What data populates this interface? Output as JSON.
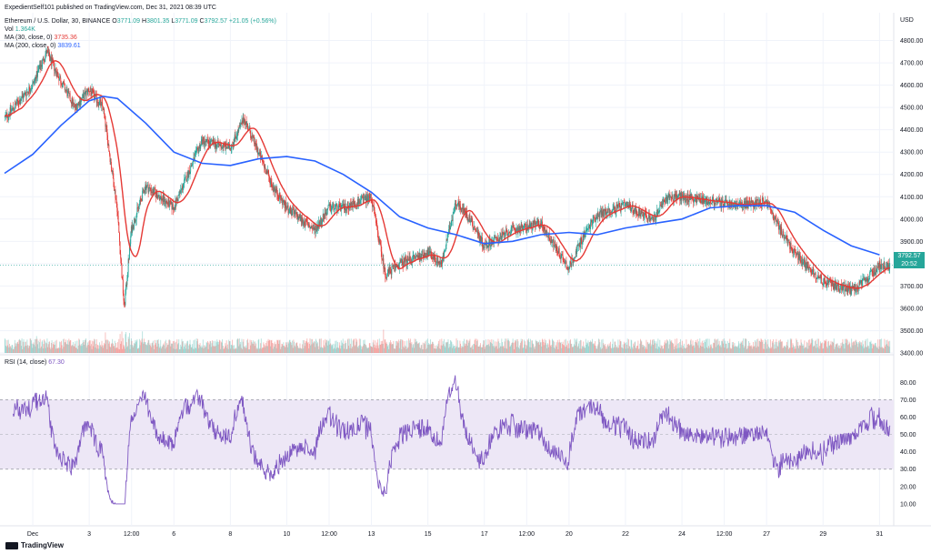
{
  "title_line": "ExpedientSelf101 published on TradingView.com, Dec 31, 2021 08:39 UTC",
  "legend": {
    "symbol": "Ethereum / U.S. Dollar, 30, BINANCE",
    "o_label": "O",
    "o": "3771.09",
    "h_label": "H",
    "h": "3801.35",
    "l_label": "L",
    "l": "3771.09",
    "c_label": "C",
    "c": "3792.57",
    "change": "+21.05 (+0.56%)",
    "vol_label": "Vol",
    "vol": "1.364K",
    "ma30_label": "MA (30, close, 0)",
    "ma30": "3735.36",
    "ma200_label": "MA (200, close, 0)",
    "ma200": "3839.61",
    "rsi_label": "RSI (14, close)",
    "rsi": "67.30"
  },
  "currency": "USD",
  "price_tag": {
    "price": "3792.57",
    "countdown": "20:52"
  },
  "footer_logo": "TradingView",
  "colors": {
    "up": "#26a69a",
    "down": "#e53935",
    "ma30": "#e53935",
    "ma200": "#2962ff",
    "rsi": "#7e57c2",
    "rsi_band": "#ede7f6"
  },
  "chart_data": [
    {
      "type": "candlestick",
      "ylim": [
        3400,
        4900
      ],
      "y_ticks": [
        "4800.00",
        "4700.00",
        "4600.00",
        "4500.00",
        "4400.00",
        "4300.00",
        "4200.00",
        "4100.00",
        "4000.00",
        "3900.00",
        "3800.00",
        "3700.00",
        "3600.00",
        "3500.00",
        "3400.00"
      ],
      "x_ticks": [
        "Dec",
        "3",
        "12:00",
        "6",
        "8",
        "10",
        "12:00",
        "13",
        "15",
        "17",
        "12:00",
        "20",
        "22",
        "24",
        "12:00",
        "27",
        "29",
        "31"
      ],
      "close_path": [
        [
          "Nov 30",
          4450
        ],
        [
          "Dec 1",
          4600
        ],
        [
          "Dec 1 12:00",
          4750
        ],
        [
          "Dec 2",
          4620
        ],
        [
          "Dec 2 12:00",
          4500
        ],
        [
          "Dec 3",
          4580
        ],
        [
          "Dec 3 12:00",
          4500
        ],
        [
          "Dec 4",
          4050
        ],
        [
          "Dec 4 06:00",
          3600
        ],
        [
          "Dec 4 12:00",
          3950
        ],
        [
          "Dec 5",
          4150
        ],
        [
          "Dec 6",
          4050
        ],
        [
          "Dec 6 12:00",
          4200
        ],
        [
          "Dec 7",
          4350
        ],
        [
          "Dec 8",
          4320
        ],
        [
          "Dec 8 12:00",
          4450
        ],
        [
          "Dec 9",
          4300
        ],
        [
          "Dec 9 12:00",
          4150
        ],
        [
          "Dec 10",
          4050
        ],
        [
          "Dec 11",
          3950
        ],
        [
          "Dec 11 12:00",
          4050
        ],
        [
          "Dec 12",
          4050
        ],
        [
          "Dec 13",
          4100
        ],
        [
          "Dec 13 12:00",
          3750
        ],
        [
          "Dec 14",
          3800
        ],
        [
          "Dec 15",
          3850
        ],
        [
          "Dec 15 12:00",
          3800
        ],
        [
          "Dec 16",
          4080
        ],
        [
          "Dec 16 12:00",
          4000
        ],
        [
          "Dec 17",
          3880
        ],
        [
          "Dec 18",
          3950
        ],
        [
          "Dec 19",
          3980
        ],
        [
          "Dec 20",
          3780
        ],
        [
          "Dec 20 12:00",
          3920
        ],
        [
          "Dec 21",
          4020
        ],
        [
          "Dec 22",
          4060
        ],
        [
          "Dec 23",
          4000
        ],
        [
          "Dec 23 12:00",
          4100
        ],
        [
          "Dec 24",
          4100
        ],
        [
          "Dec 25",
          4080
        ],
        [
          "Dec 26",
          4060
        ],
        [
          "Dec 27",
          4080
        ],
        [
          "Dec 27 12:00",
          3950
        ],
        [
          "Dec 28",
          3850
        ],
        [
          "Dec 29",
          3720
        ],
        [
          "Dec 30",
          3680
        ],
        [
          "Dec 30 12:00",
          3720
        ],
        [
          "Dec 31",
          3792.57
        ]
      ],
      "ma30": {
        "name": "MA (30, close, 0)",
        "last": 3735.36
      },
      "ma200": {
        "name": "MA (200, close, 0)",
        "last": 3839.61,
        "path": [
          [
            "Nov 30",
            4205
          ],
          [
            "Dec 1",
            4290
          ],
          [
            "Dec 2",
            4420
          ],
          [
            "Dec 3",
            4530
          ],
          [
            "Dec 3 12:00",
            4550
          ],
          [
            "Dec 4",
            4540
          ],
          [
            "Dec 5",
            4430
          ],
          [
            "Dec 6",
            4300
          ],
          [
            "Dec 7",
            4250
          ],
          [
            "Dec 8",
            4240
          ],
          [
            "Dec 9",
            4270
          ],
          [
            "Dec 10",
            4280
          ],
          [
            "Dec 11",
            4260
          ],
          [
            "Dec 12",
            4200
          ],
          [
            "Dec 13",
            4120
          ],
          [
            "Dec 14",
            4010
          ],
          [
            "Dec 15",
            3960
          ],
          [
            "Dec 16",
            3930
          ],
          [
            "Dec 17",
            3890
          ],
          [
            "Dec 18",
            3900
          ],
          [
            "Dec 19",
            3930
          ],
          [
            "Dec 20",
            3940
          ],
          [
            "Dec 21",
            3930
          ],
          [
            "Dec 22",
            3960
          ],
          [
            "Dec 23",
            3980
          ],
          [
            "Dec 24",
            4000
          ],
          [
            "Dec 25",
            4050
          ],
          [
            "Dec 26",
            4060
          ],
          [
            "Dec 27",
            4060
          ],
          [
            "Dec 28",
            4030
          ],
          [
            "Dec 29",
            3950
          ],
          [
            "Dec 30",
            3880
          ],
          [
            "Dec 31",
            3840
          ]
        ]
      },
      "volume": {
        "name": "Vol",
        "last": "1.364K"
      }
    },
    {
      "type": "line",
      "name": "RSI (14, close)",
      "last": 67.3,
      "ylim": [
        0,
        88
      ],
      "y_ticks": [
        "80.00",
        "70.00",
        "60.00",
        "50.00",
        "40.00",
        "30.00",
        "20.00",
        "10.00"
      ],
      "band": [
        30,
        70
      ]
    }
  ]
}
